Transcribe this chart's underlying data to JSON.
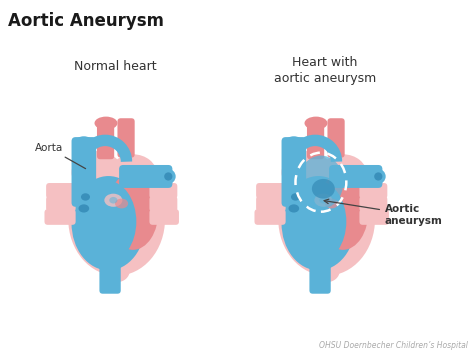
{
  "title": "Aortic Aneurysm",
  "subtitle_left": "Normal heart",
  "subtitle_right": "Heart with\naortic aneurysm",
  "label_aorta": "Aorta",
  "label_aneurysm": "Aortic\naneurysm",
  "credit": "OHSU Doernbecher Children’s Hospital",
  "bg_color": "#ffffff",
  "pink_light": "#f5c0c2",
  "pink_mid": "#e88a8e",
  "pink_dark": "#d97070",
  "blue_main": "#5ab2d8",
  "blue_dark": "#3a90bb",
  "blue_ring": "#4899c0",
  "title_fontsize": 12,
  "subtitle_fontsize": 9,
  "label_fontsize": 7.5,
  "credit_fontsize": 5.5
}
